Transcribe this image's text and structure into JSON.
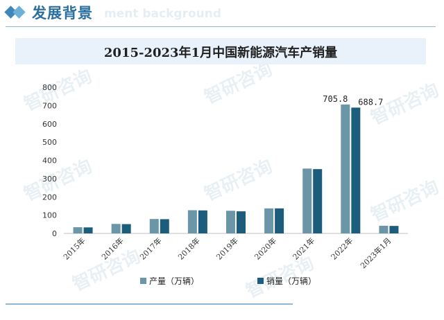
{
  "header": {
    "title": "发展背景",
    "watermark": "ment background"
  },
  "chart_data": {
    "type": "bar",
    "title": "2015-2023年1月中国新能源汽车产销量",
    "categories": [
      "2015年",
      "2016年",
      "2017年",
      "2018年",
      "2019年",
      "2020年",
      "2021年",
      "2022年",
      "2023年1月"
    ],
    "series": [
      {
        "name": "产量（万辆）",
        "color": "#6b96a8",
        "values": [
          34,
          52,
          79,
          127,
          124,
          137,
          355,
          705.8,
          42
        ]
      },
      {
        "name": "销量（万辆）",
        "color": "#1d5d7c",
        "values": [
          33,
          51,
          78,
          126,
          121,
          137,
          352,
          688.7,
          41
        ]
      }
    ],
    "data_labels": [
      {
        "series": 0,
        "category": 7,
        "text": "705.8"
      },
      {
        "series": 1,
        "category": 7,
        "text": "688.7"
      }
    ],
    "yticks": [
      0,
      100,
      200,
      300,
      400,
      500,
      600,
      700,
      800
    ],
    "ylim": [
      0,
      800
    ],
    "grid": false,
    "legend_position": "bottom"
  },
  "watermark_text": "智研咨询"
}
